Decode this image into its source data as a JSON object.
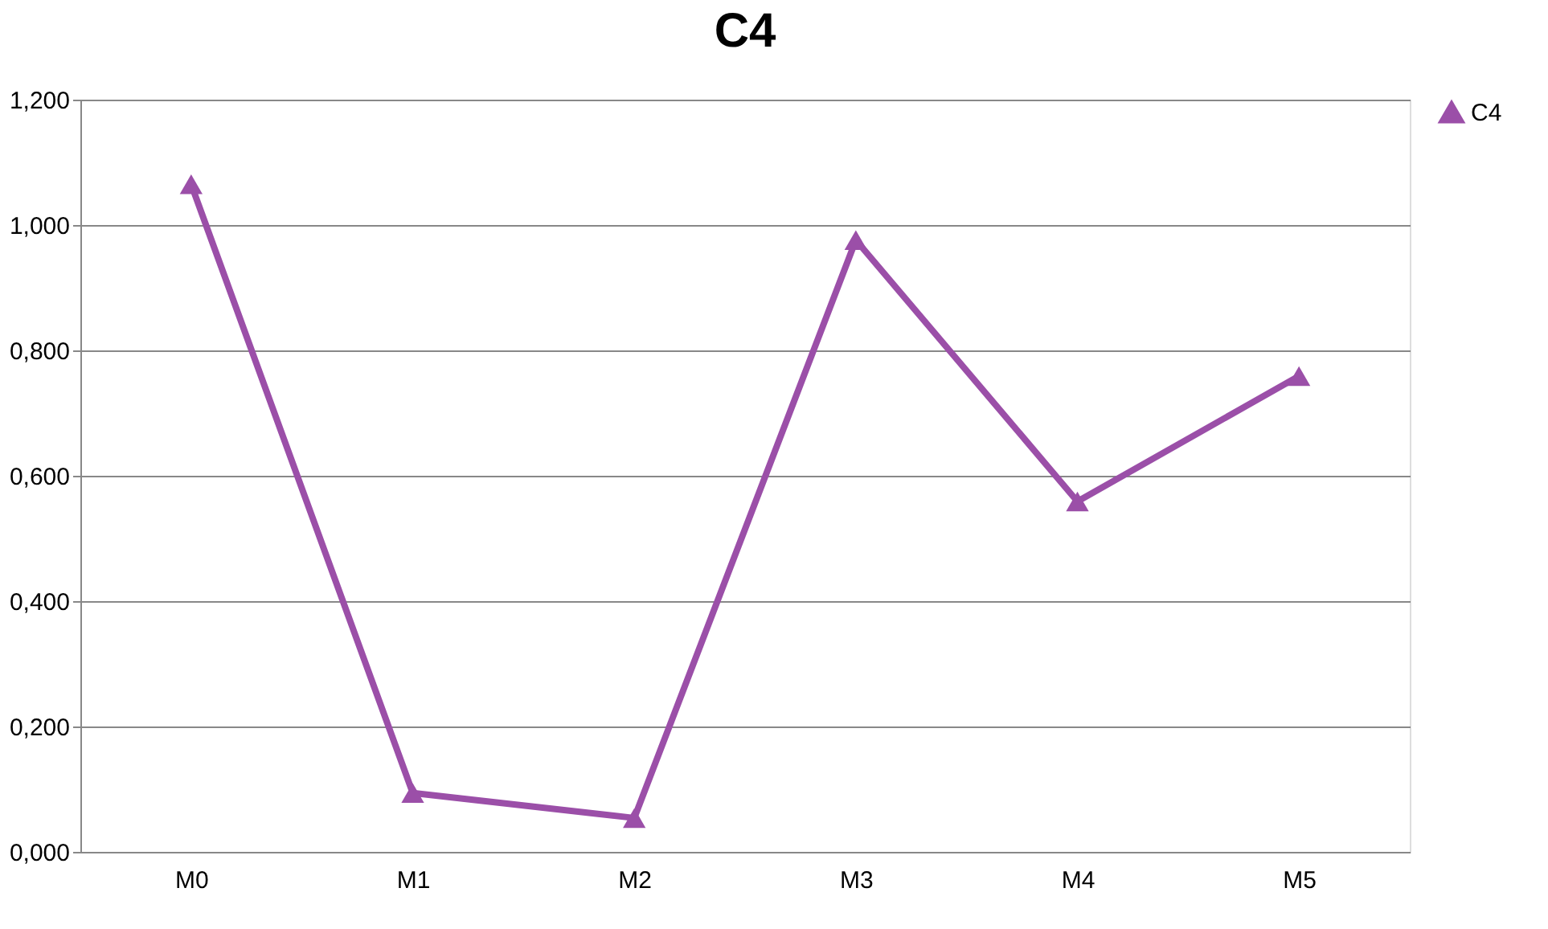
{
  "chart_data": {
    "type": "line",
    "title": "C4",
    "categories": [
      "M0",
      "M1",
      "M2",
      "M3",
      "M4",
      "M5"
    ],
    "series": [
      {
        "name": "C4",
        "color": "#9b4fa8",
        "values": [
          1.065,
          0.094,
          0.054,
          0.976,
          0.559,
          0.759
        ]
      }
    ],
    "ylim": [
      0,
      1.2
    ],
    "yticks": [
      {
        "value": 0,
        "label": "0,000"
      },
      {
        "value": 0.2,
        "label": "0,200"
      },
      {
        "value": 0.4,
        "label": "0,400"
      },
      {
        "value": 0.6,
        "label": "0,600"
      },
      {
        "value": 0.8,
        "label": "0,800"
      },
      {
        "value": 1.0,
        "label": "1,000"
      },
      {
        "value": 1.2,
        "label": "1,200"
      }
    ],
    "grid": "y",
    "legend": "right",
    "marker": "triangle",
    "line_style": "solid"
  }
}
